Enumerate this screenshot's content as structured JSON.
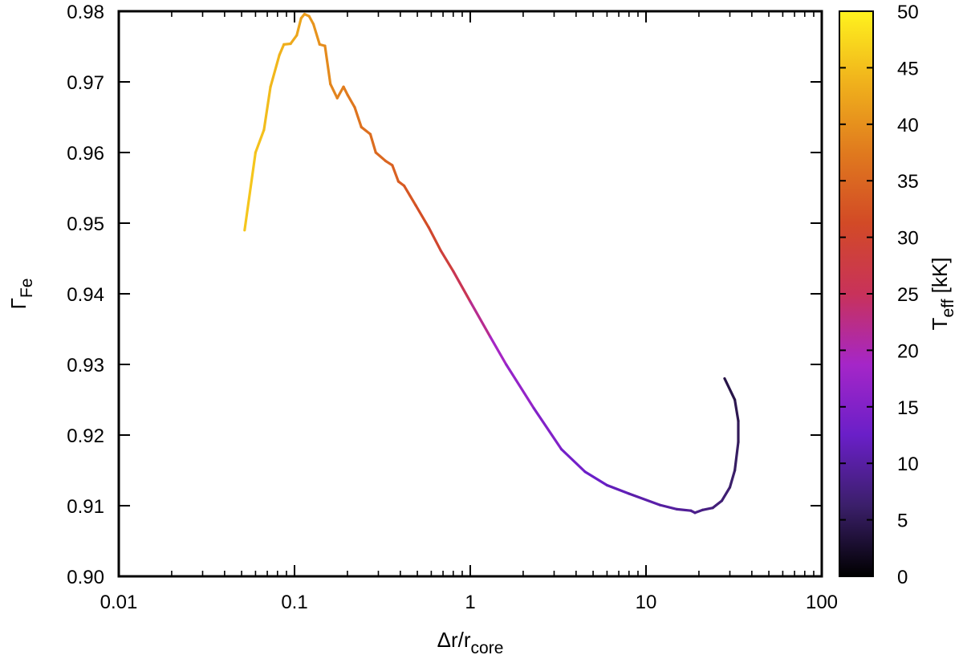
{
  "chart_data": {
    "type": "line",
    "x_scale": "log",
    "xlabel": {
      "main": "Δr/r",
      "sub": "core"
    },
    "ylabel": {
      "main": "Γ",
      "sub": "Fe"
    },
    "colorbar_label": {
      "main": "T",
      "sub": "eff",
      "suffix": " [kK]"
    },
    "xlim": [
      0.01,
      100
    ],
    "ylim": [
      0.9,
      0.98
    ],
    "x_ticks": [
      0.01,
      0.1,
      1,
      10,
      100
    ],
    "x_tick_labels": [
      "0.01",
      "0.1",
      "1",
      "10",
      "100"
    ],
    "y_ticks": [
      0.9,
      0.91,
      0.92,
      0.93,
      0.94,
      0.95,
      0.96,
      0.97,
      0.98
    ],
    "y_tick_labels": [
      "0.90",
      "0.91",
      "0.92",
      "0.93",
      "0.94",
      "0.95",
      "0.96",
      "0.97",
      "0.98"
    ],
    "colorbar_range": [
      0,
      50
    ],
    "colorbar_ticks": [
      0,
      5,
      10,
      15,
      20,
      25,
      30,
      35,
      40,
      45,
      50
    ],
    "colorbar_tick_labels": [
      "0",
      "5",
      "10",
      "15",
      "20",
      "25",
      "30",
      "35",
      "40",
      "45",
      "50"
    ],
    "colormap": [
      "#000000",
      "#3b1f6a",
      "#6a1fc8",
      "#a526c8",
      "#c8325a",
      "#d24a26",
      "#e07a1e",
      "#f0b21c",
      "#fff21e"
    ],
    "grid": false,
    "series": [
      {
        "color_by": "Teff_kK",
        "points": [
          {
            "x": 0.052,
            "y": 0.949,
            "c": 46
          },
          {
            "x": 0.06,
            "y": 0.96,
            "c": 45.5
          },
          {
            "x": 0.067,
            "y": 0.9632,
            "c": 45
          },
          {
            "x": 0.073,
            "y": 0.9693,
            "c": 44.5
          },
          {
            "x": 0.082,
            "y": 0.9738,
            "c": 44
          },
          {
            "x": 0.087,
            "y": 0.9753,
            "c": 43.5
          },
          {
            "x": 0.095,
            "y": 0.9754,
            "c": 43
          },
          {
            "x": 0.103,
            "y": 0.9766,
            "c": 42.5
          },
          {
            "x": 0.109,
            "y": 0.979,
            "c": 42
          },
          {
            "x": 0.114,
            "y": 0.9796,
            "c": 41.5
          },
          {
            "x": 0.121,
            "y": 0.9793,
            "c": 41
          },
          {
            "x": 0.128,
            "y": 0.9782,
            "c": 40.5
          },
          {
            "x": 0.139,
            "y": 0.9753,
            "c": 40
          },
          {
            "x": 0.149,
            "y": 0.9751,
            "c": 39.5
          },
          {
            "x": 0.16,
            "y": 0.9697,
            "c": 39
          },
          {
            "x": 0.175,
            "y": 0.9677,
            "c": 38.5
          },
          {
            "x": 0.19,
            "y": 0.9693,
            "c": 38
          },
          {
            "x": 0.201,
            "y": 0.9681,
            "c": 37.5
          },
          {
            "x": 0.22,
            "y": 0.9664,
            "c": 37
          },
          {
            "x": 0.24,
            "y": 0.9636,
            "c": 36.5
          },
          {
            "x": 0.27,
            "y": 0.9626,
            "c": 36
          },
          {
            "x": 0.29,
            "y": 0.96,
            "c": 35.5
          },
          {
            "x": 0.33,
            "y": 0.9588,
            "c": 35
          },
          {
            "x": 0.36,
            "y": 0.9582,
            "c": 34.5
          },
          {
            "x": 0.39,
            "y": 0.9559,
            "c": 34
          },
          {
            "x": 0.42,
            "y": 0.9553,
            "c": 33.5
          },
          {
            "x": 0.49,
            "y": 0.9525,
            "c": 32.5
          },
          {
            "x": 0.58,
            "y": 0.9494,
            "c": 31
          },
          {
            "x": 0.68,
            "y": 0.9461,
            "c": 29.5
          },
          {
            "x": 0.8,
            "y": 0.9432,
            "c": 27.5
          },
          {
            "x": 1.0,
            "y": 0.9389,
            "c": 24
          },
          {
            "x": 1.3,
            "y": 0.9339,
            "c": 20
          },
          {
            "x": 1.6,
            "y": 0.93,
            "c": 18
          },
          {
            "x": 2.3,
            "y": 0.9238,
            "c": 16
          },
          {
            "x": 3.3,
            "y": 0.918,
            "c": 14
          },
          {
            "x": 4.5,
            "y": 0.9148,
            "c": 13
          },
          {
            "x": 6.0,
            "y": 0.9129,
            "c": 12
          },
          {
            "x": 8.0,
            "y": 0.9117,
            "c": 11
          },
          {
            "x": 12.0,
            "y": 0.9101,
            "c": 10
          },
          {
            "x": 15.0,
            "y": 0.9095,
            "c": 9.5
          },
          {
            "x": 18.0,
            "y": 0.9093,
            "c": 9
          },
          {
            "x": 19.0,
            "y": 0.909,
            "c": 8.5
          },
          {
            "x": 21.0,
            "y": 0.9094,
            "c": 8
          },
          {
            "x": 24.0,
            "y": 0.9097,
            "c": 7.5
          },
          {
            "x": 27.0,
            "y": 0.9107,
            "c": 7
          },
          {
            "x": 30.0,
            "y": 0.9126,
            "c": 6.5
          },
          {
            "x": 32.0,
            "y": 0.915,
            "c": 6
          },
          {
            "x": 33.5,
            "y": 0.919,
            "c": 5.5
          },
          {
            "x": 33.5,
            "y": 0.922,
            "c": 5
          },
          {
            "x": 32.0,
            "y": 0.925,
            "c": 4.5
          },
          {
            "x": 28.0,
            "y": 0.928,
            "c": 4
          }
        ]
      }
    ]
  }
}
